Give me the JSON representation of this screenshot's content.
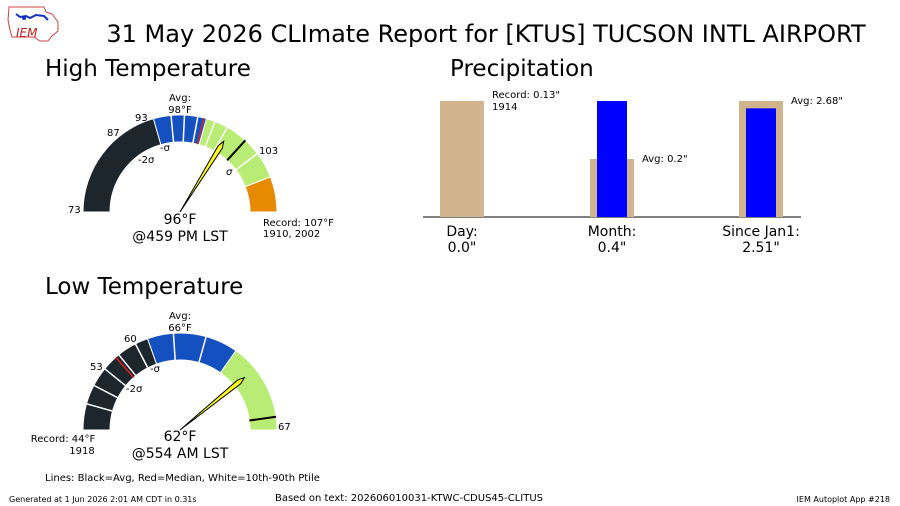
{
  "title": "31 May 2026 CLImate Report for [KTUS] TUCSON INTL AIRPORT",
  "logo": {
    "text": "IEM"
  },
  "colors": {
    "lowest": "#1c262c",
    "low": "#1450c0",
    "mid": "#b8ec74",
    "high": "#e68a00",
    "needle": "#ffff1a",
    "precip_avg": "#d2b48c",
    "precip_obs": "#0000ff"
  },
  "high_temp": {
    "heading": "High Temperature",
    "observed": "96°F",
    "observed_time": "@459 PM LST",
    "avg_label": "Avg:",
    "avg_value": "98°F",
    "record_label": "Record: 107°F",
    "record_years": "1910, 2002",
    "minus2_label": "-2σ",
    "minus1_label": "-σ",
    "plus1_label": "σ",
    "tick_labels": [
      "73",
      "87",
      "93",
      "103"
    ]
  },
  "low_temp": {
    "heading": "Low Temperature",
    "observed": "62°F",
    "observed_time": "@554 AM LST",
    "avg_label": "Avg:",
    "avg_value": "66°F",
    "record_label": "Record: 44°F",
    "record_years": "1918",
    "minus2_label": "-2σ",
    "minus1_label": "-σ",
    "tick_labels": [
      "53",
      "60",
      "67"
    ]
  },
  "chart_data": {
    "type": "bar",
    "title": "Precipitation",
    "categories": [
      "Day:",
      "Month:",
      "Since Jan1:"
    ],
    "observed_labels": [
      "0.0\"",
      "0.4\"",
      "2.51\""
    ],
    "series": [
      {
        "name": "Avg",
        "values": [
          0.0,
          0.2,
          2.68
        ]
      },
      {
        "name": "Observed",
        "values": [
          0.0,
          0.4,
          2.51
        ]
      }
    ],
    "record": {
      "category": "Day:",
      "value": 0.13,
      "year": "1914"
    },
    "annotations": [
      "Record: 0.13\"",
      "1914",
      "Avg: 0.2\"",
      "Avg: 2.68\""
    ]
  },
  "footer": {
    "lines_legend": "Lines: Black=Avg, Red=Median, White=10th-90th Ptile",
    "generated": "Generated at 1 Jun 2026 2:01 AM CDT in 0.31s",
    "source": "Based on text: 202606010031-KTWC-CDUS45-CLITUS",
    "app": "IEM Autoplot App #218"
  }
}
